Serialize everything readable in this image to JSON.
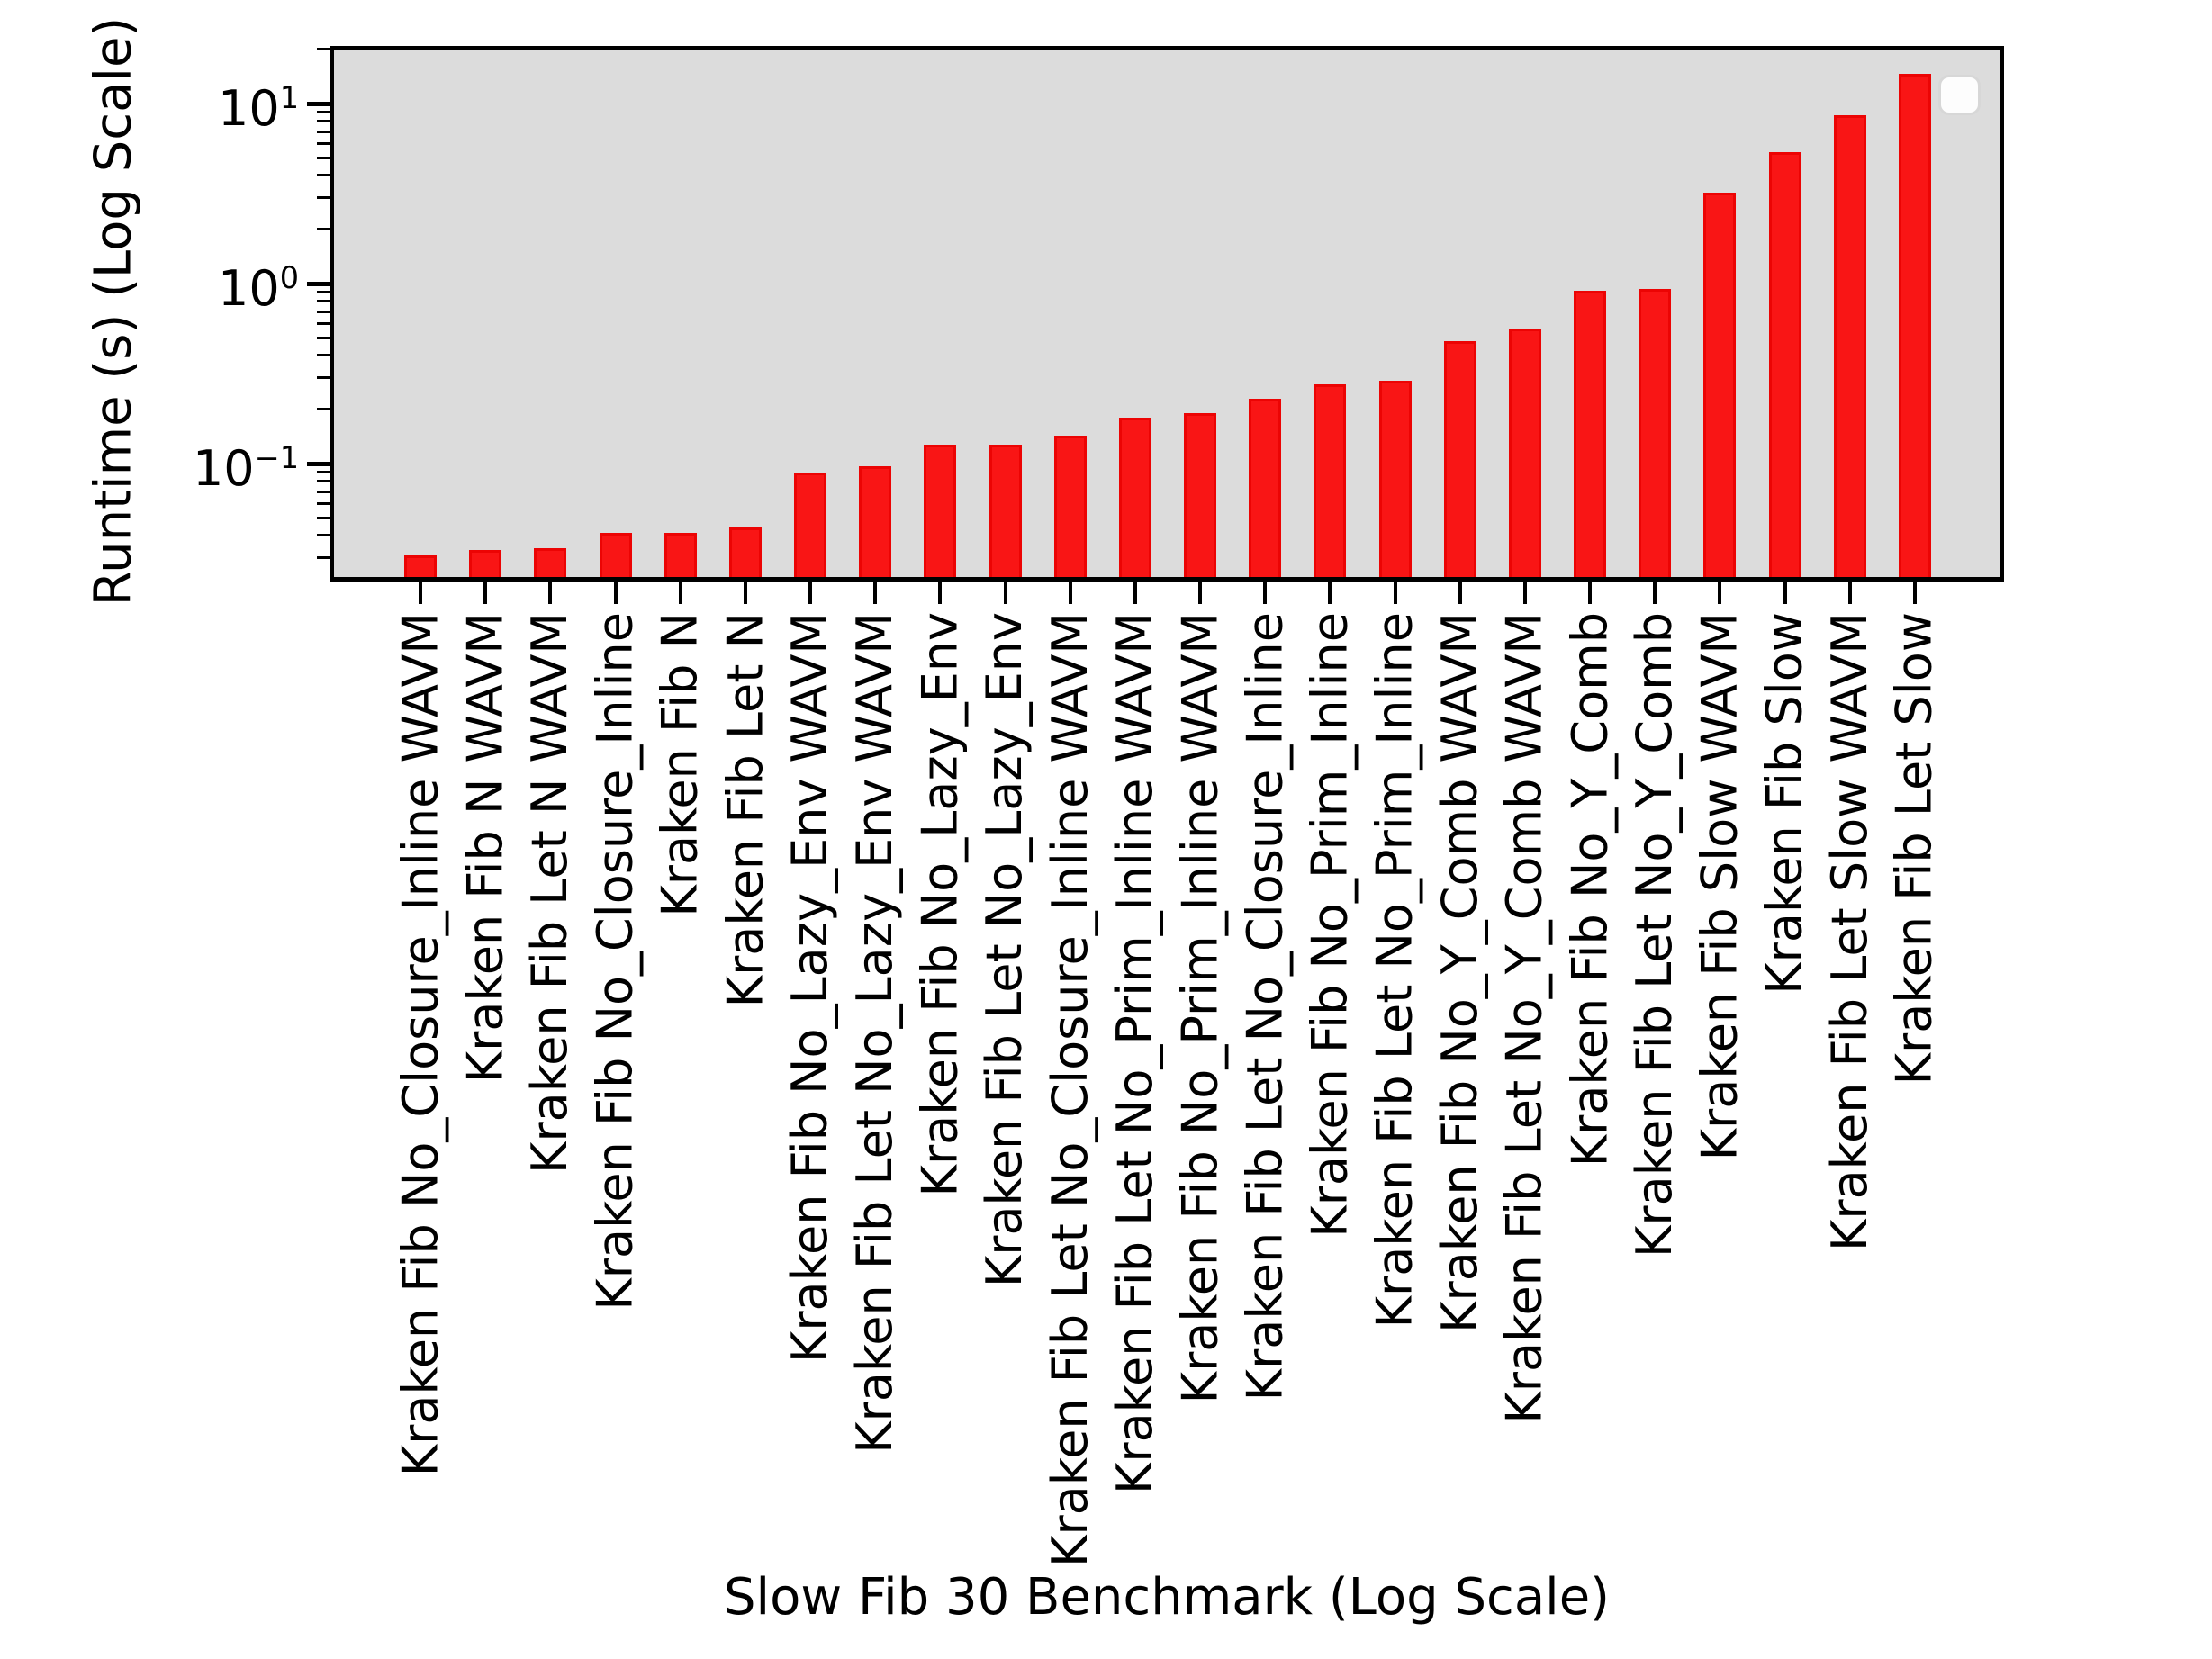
{
  "figure": {
    "background": "#ffffff",
    "plot_background": "#dcdcdc",
    "axis_color": "#000000",
    "bar_color": "#f91515",
    "bar_edge_color": "#ec0404",
    "legend": {
      "present": true,
      "entries": [],
      "background": "#fdfdfd",
      "border_color": "#d7d7d7"
    }
  },
  "chart_data": {
    "type": "bar",
    "title": "",
    "xlabel": "Slow Fib 30 Benchmark (Log Scale)",
    "ylabel": "Runtime (s) (Log Scale)",
    "yscale": "log",
    "ylim": [
      0.023,
      20
    ],
    "grid": false,
    "legend_position": "upper right",
    "y_major_ticks": [
      {
        "base": "10",
        "exp": "1",
        "value": 10
      },
      {
        "base": "10",
        "exp": "0",
        "value": 1
      },
      {
        "base": "10",
        "exp": "−1",
        "value": 0.1
      }
    ],
    "categories": [
      "Kraken Fib No_Closure_Inline WAVM",
      "Kraken Fib N WAVM",
      "Kraken Fib Let N WAVM",
      "Kraken Fib No_Closure_Inline",
      "Kraken Fib N",
      "Kraken Fib Let N",
      "Kraken Fib No_Lazy_Env WAVM",
      "Kraken Fib Let No_Lazy_Env WAVM",
      "Kraken Fib No_Lazy_Env",
      "Kraken Fib Let No_Lazy_Env",
      "Kraken Fib Let No_Closure_Inline WAVM",
      "Kraken Fib Let No_Prim_Inline WAVM",
      "Kraken Fib No_Prim_Inline WAVM",
      "Kraken Fib Let No_Closure_Inline",
      "Kraken Fib No_Prim_Inline",
      "Kraken Fib Let No_Prim_Inline",
      "Kraken Fib No_Y_Comb WAVM",
      "Kraken Fib Let No_Y_Comb WAVM",
      "Kraken Fib No_Y_Comb",
      "Kraken Fib Let No_Y_Comb",
      "Kraken Fib Slow WAVM",
      "Kraken Fib Slow",
      "Kraken Fib Let Slow WAVM",
      "Kraken Fib Let Slow"
    ],
    "values": [
      0.031,
      0.033,
      0.034,
      0.041,
      0.041,
      0.044,
      0.089,
      0.097,
      0.127,
      0.128,
      0.143,
      0.18,
      0.19,
      0.23,
      0.275,
      0.29,
      0.48,
      0.56,
      0.91,
      0.93,
      3.2,
      5.4,
      8.6,
      14.7
    ]
  }
}
